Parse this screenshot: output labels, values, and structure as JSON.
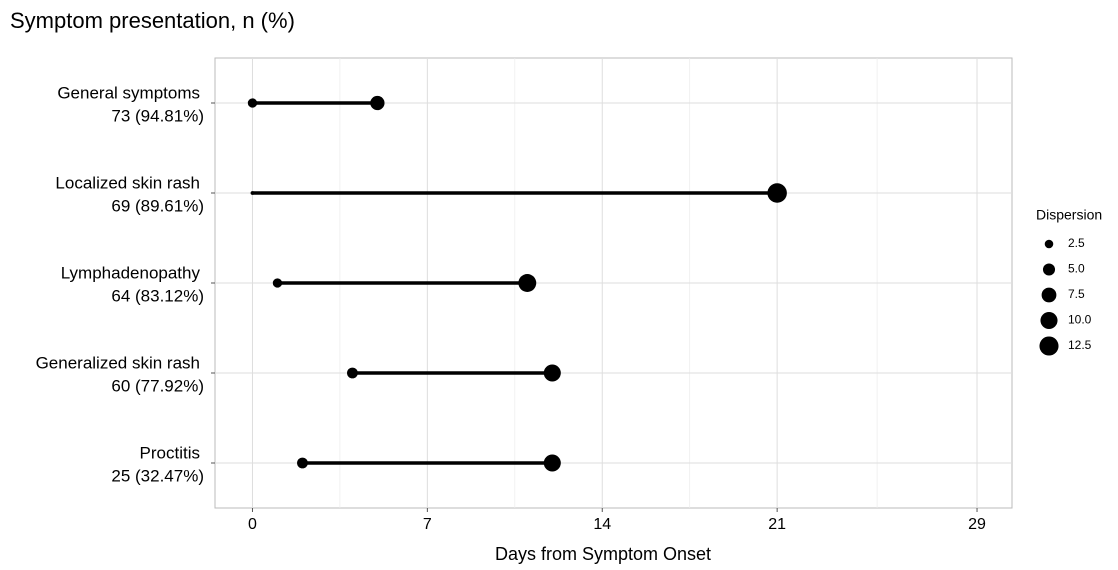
{
  "chart_data": {
    "type": "dumbbell",
    "title": "Symptom presentation, n (%)",
    "x_label": "Days from Symptom Onset",
    "categories": [
      "General symptoms",
      "Localized skin rash",
      "Lymphadenopathy",
      "Generalized skin rash",
      "Proctitis"
    ],
    "category_counts": [
      "73 (94.81%)",
      "69 (89.61%)",
      "64 (83.12%)",
      "60 (77.92%)",
      "25 (32.47%)"
    ],
    "start": [
      0,
      0,
      1,
      4,
      2
    ],
    "end": [
      5,
      21,
      11,
      12,
      12
    ],
    "start_size": [
      3,
      0.5,
      3,
      4,
      4
    ],
    "end_size": [
      7,
      13,
      11,
      10,
      10
    ],
    "color": "#000000",
    "xlim": [
      -1.5,
      30.4
    ],
    "xticks": [
      0,
      7,
      14,
      21,
      29
    ],
    "minor_xticks": [
      3.5,
      10.5,
      17.5,
      25
    ],
    "grid": true,
    "legend": {
      "title": "Dispersion",
      "sizes": [
        2.5,
        {
          "value": 5,
          "label": "5.0"
        },
        7.5,
        {
          "value": 10,
          "label": "10.0"
        },
        12.5
      ]
    }
  }
}
